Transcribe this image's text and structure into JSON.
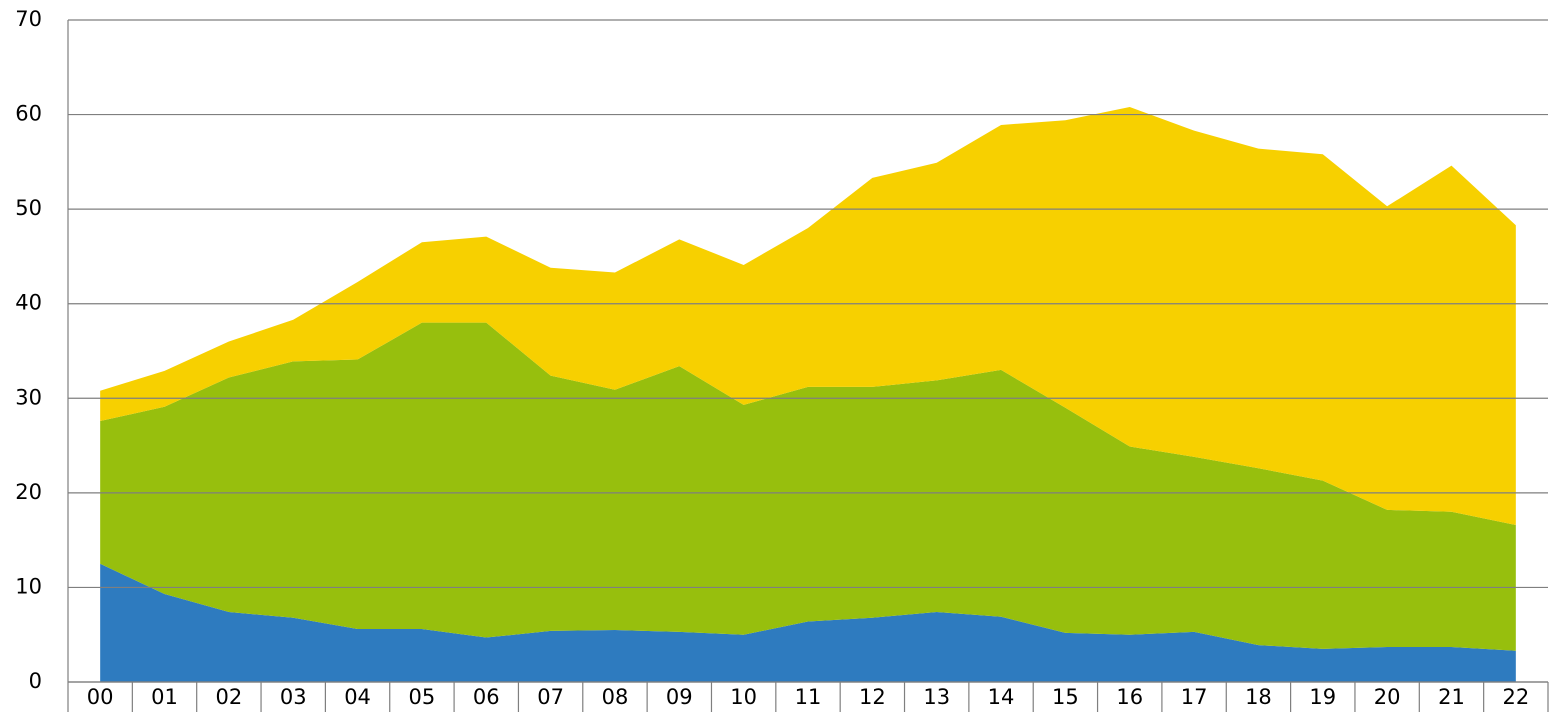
{
  "chart_data": {
    "type": "area",
    "stacked": true,
    "categories": [
      "00",
      "01",
      "02",
      "03",
      "04",
      "05",
      "06",
      "07",
      "08",
      "09",
      "10",
      "11",
      "12",
      "13",
      "14",
      "15",
      "16",
      "17",
      "18",
      "19",
      "20",
      "21",
      "22"
    ],
    "series": [
      {
        "color": "#2e7bbf",
        "values": [
          12.5,
          9.3,
          7.4,
          6.8,
          5.6,
          5.6,
          4.7,
          5.4,
          5.5,
          5.3,
          5.0,
          6.4,
          6.8,
          7.4,
          6.9,
          5.2,
          5.0,
          5.3,
          3.9,
          3.5,
          3.7,
          3.7,
          3.3
        ]
      },
      {
        "color": "#97bf0d",
        "values": [
          15.1,
          19.8,
          24.8,
          27.1,
          28.5,
          32.4,
          33.3,
          27.0,
          25.4,
          28.1,
          24.3,
          24.8,
          24.4,
          24.5,
          26.1,
          23.8,
          19.9,
          18.5,
          18.7,
          17.8,
          14.5,
          14.3,
          13.3
        ]
      },
      {
        "color": "#f7d000",
        "values": [
          3.2,
          3.8,
          3.8,
          4.4,
          8.2,
          8.5,
          9.1,
          11.4,
          12.4,
          13.4,
          14.8,
          16.8,
          22.1,
          23.0,
          25.9,
          30.4,
          35.9,
          34.5,
          33.8,
          34.5,
          32.1,
          36.6,
          31.7
        ]
      }
    ],
    "ylim": [
      0,
      70
    ],
    "yticks": [
      0,
      10,
      20,
      30,
      40,
      50,
      60,
      70
    ],
    "grid": true
  }
}
